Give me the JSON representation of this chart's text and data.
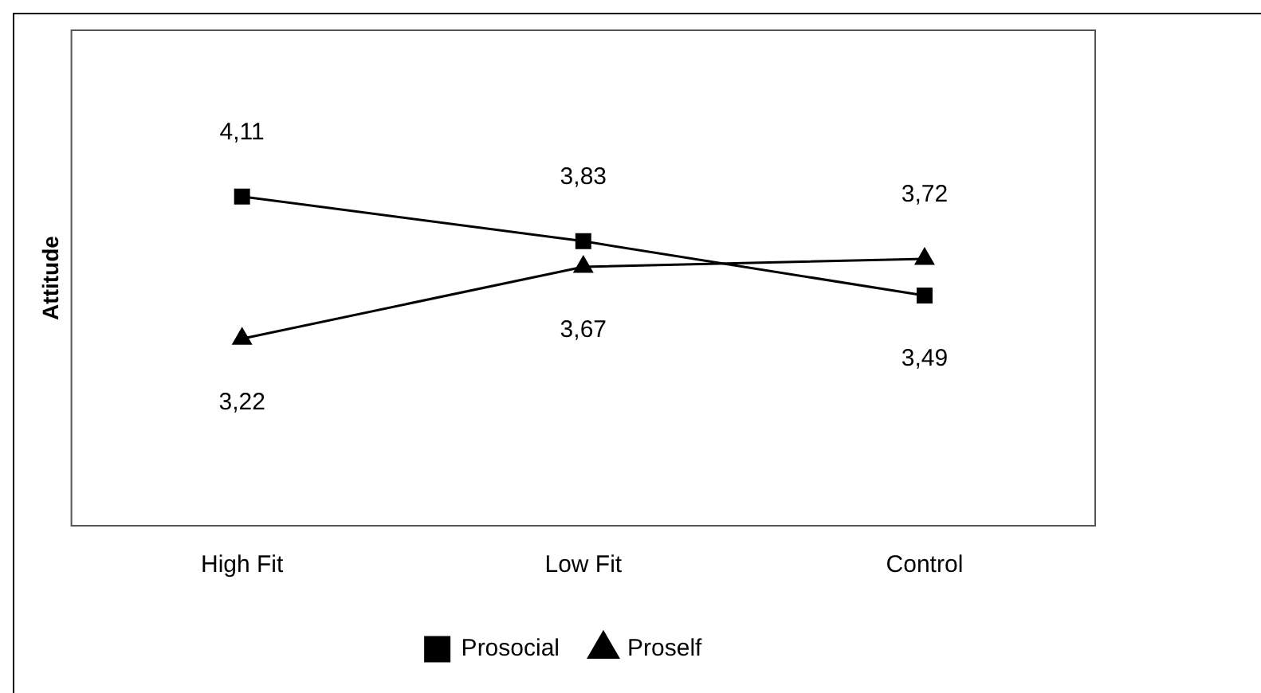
{
  "chart_data": {
    "type": "line",
    "ylabel": "Attitude",
    "categories": [
      "High Fit",
      "Low Fit",
      "Control"
    ],
    "series": [
      {
        "name": "Prosocial",
        "color": "#000000",
        "marker": "square",
        "values": [
          4.11,
          3.83,
          3.49
        ],
        "value_labels": [
          "4,11",
          "3,83",
          "3,49"
        ]
      },
      {
        "name": "Proself",
        "color": "#000000",
        "marker": "triangle",
        "values": [
          3.22,
          3.67,
          3.72
        ],
        "value_labels": [
          "3,22",
          "3,67",
          "3,72"
        ]
      }
    ],
    "ylim": [
      2.05,
      5.15
    ],
    "tick_labels": "x",
    "grid": false,
    "legend": "bottom",
    "line_style": "solid"
  }
}
